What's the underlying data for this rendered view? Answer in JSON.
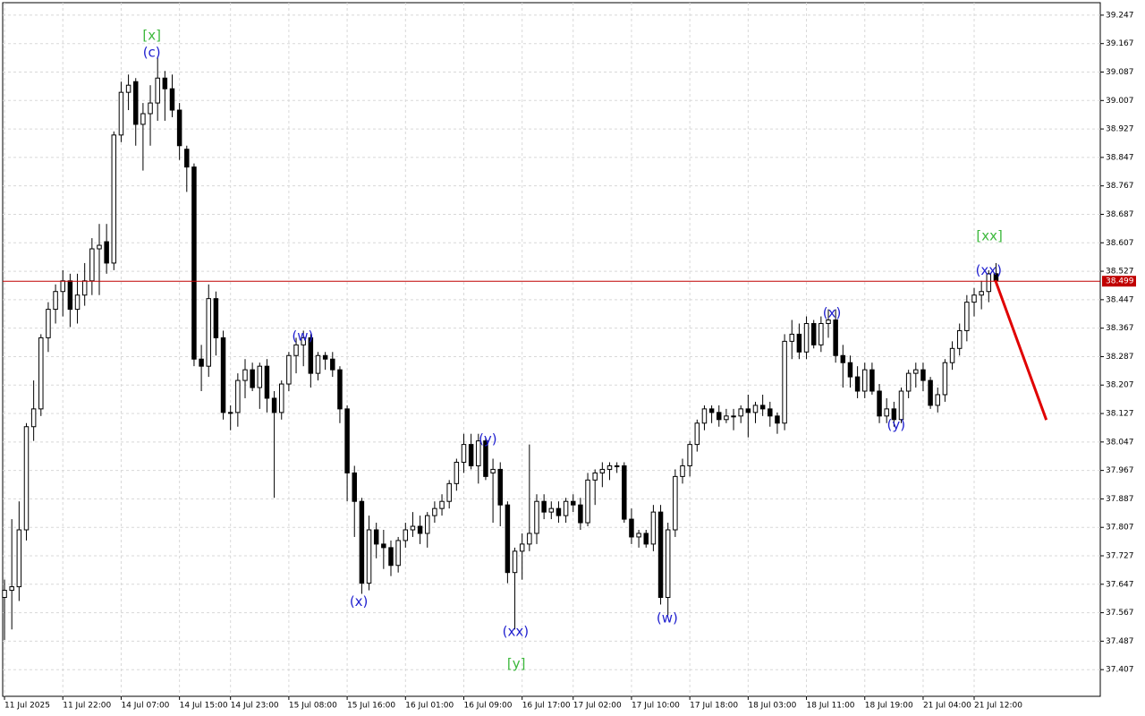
{
  "chart_data": {
    "type": "candlestick",
    "bull_color": "#ffffff",
    "bear_color": "#000000",
    "wick_color": "#000000",
    "ohlc": [
      [
        37.61,
        37.66,
        37.49,
        37.63
      ],
      [
        37.63,
        37.83,
        37.52,
        37.64
      ],
      [
        37.64,
        37.88,
        37.6,
        37.8
      ],
      [
        37.8,
        38.1,
        37.77,
        38.09
      ],
      [
        38.09,
        38.22,
        38.05,
        38.14
      ],
      [
        38.14,
        38.35,
        38.12,
        38.34
      ],
      [
        38.34,
        38.44,
        38.3,
        38.42
      ],
      [
        38.42,
        38.49,
        38.38,
        38.47
      ],
      [
        38.47,
        38.53,
        38.4,
        38.5
      ],
      [
        38.5,
        38.52,
        38.37,
        38.42
      ],
      [
        38.42,
        38.52,
        38.38,
        38.46
      ],
      [
        38.46,
        38.55,
        38.43,
        38.5
      ],
      [
        38.5,
        38.62,
        38.46,
        38.59
      ],
      [
        38.59,
        38.66,
        38.46,
        38.6
      ],
      [
        38.61,
        38.66,
        38.52,
        38.55
      ],
      [
        38.55,
        38.92,
        38.53,
        38.91
      ],
      [
        38.91,
        39.06,
        38.89,
        39.03
      ],
      [
        39.03,
        39.08,
        38.98,
        39.05
      ],
      [
        39.06,
        39.07,
        38.88,
        38.94
      ],
      [
        38.94,
        39.0,
        38.81,
        38.97
      ],
      [
        38.97,
        39.05,
        38.88,
        39.0
      ],
      [
        39.0,
        39.13,
        38.95,
        39.07
      ],
      [
        39.07,
        39.09,
        38.95,
        39.04
      ],
      [
        39.04,
        39.08,
        38.96,
        38.98
      ],
      [
        38.98,
        39.0,
        38.84,
        38.88
      ],
      [
        38.87,
        38.88,
        38.75,
        38.82
      ],
      [
        38.82,
        38.83,
        38.26,
        38.28
      ],
      [
        38.28,
        38.32,
        38.19,
        38.26
      ],
      [
        38.26,
        38.49,
        38.23,
        38.45
      ],
      [
        38.45,
        38.47,
        38.29,
        38.34
      ],
      [
        38.34,
        38.36,
        38.11,
        38.13
      ],
      [
        38.13,
        38.15,
        38.08,
        38.13
      ],
      [
        38.13,
        38.24,
        38.09,
        38.22
      ],
      [
        38.22,
        38.28,
        38.17,
        38.25
      ],
      [
        38.25,
        38.27,
        38.19,
        38.2
      ],
      [
        38.2,
        38.27,
        38.14,
        38.26
      ],
      [
        38.26,
        38.28,
        38.13,
        38.17
      ],
      [
        38.17,
        38.19,
        37.89,
        38.13
      ],
      [
        38.13,
        38.22,
        38.11,
        38.21
      ],
      [
        38.21,
        38.3,
        38.19,
        38.29
      ],
      [
        38.29,
        38.34,
        38.24,
        38.32
      ],
      [
        38.32,
        38.36,
        38.26,
        38.34
      ],
      [
        38.34,
        38.35,
        38.2,
        38.24
      ],
      [
        38.24,
        38.3,
        38.22,
        38.29
      ],
      [
        38.29,
        38.3,
        38.25,
        38.28
      ],
      [
        38.28,
        38.3,
        38.23,
        38.25
      ],
      [
        38.25,
        38.26,
        38.1,
        38.14
      ],
      [
        38.14,
        38.15,
        37.88,
        37.96
      ],
      [
        37.96,
        37.98,
        37.78,
        37.88
      ],
      [
        37.88,
        37.89,
        37.62,
        37.65
      ],
      [
        37.65,
        37.84,
        37.63,
        37.8
      ],
      [
        37.8,
        37.82,
        37.72,
        37.76
      ],
      [
        37.76,
        37.8,
        37.69,
        37.75
      ],
      [
        37.75,
        37.77,
        37.67,
        37.7
      ],
      [
        37.7,
        37.78,
        37.68,
        37.77
      ],
      [
        37.77,
        37.82,
        37.75,
        37.8
      ],
      [
        37.8,
        37.85,
        37.78,
        37.81
      ],
      [
        37.81,
        37.84,
        37.76,
        37.79
      ],
      [
        37.79,
        37.85,
        37.75,
        37.84
      ],
      [
        37.84,
        37.88,
        37.82,
        37.86
      ],
      [
        37.86,
        37.9,
        37.84,
        37.88
      ],
      [
        37.88,
        37.94,
        37.86,
        37.93
      ],
      [
        37.93,
        38.0,
        37.91,
        37.99
      ],
      [
        37.99,
        38.07,
        37.96,
        38.04
      ],
      [
        38.04,
        38.07,
        37.97,
        37.98
      ],
      [
        37.98,
        38.07,
        37.93,
        38.05
      ],
      [
        38.05,
        38.06,
        37.94,
        37.95
      ],
      [
        37.96,
        38.0,
        37.82,
        37.97
      ],
      [
        37.97,
        37.99,
        37.81,
        37.87
      ],
      [
        37.87,
        37.88,
        37.65,
        37.68
      ],
      [
        37.68,
        37.75,
        37.52,
        37.74
      ],
      [
        37.74,
        37.79,
        37.66,
        37.76
      ],
      [
        37.76,
        38.04,
        37.74,
        37.79
      ],
      [
        37.79,
        37.9,
        37.76,
        37.88
      ],
      [
        37.88,
        37.9,
        37.83,
        37.85
      ],
      [
        37.85,
        37.88,
        37.83,
        37.86
      ],
      [
        37.86,
        37.88,
        37.82,
        37.84
      ],
      [
        37.84,
        37.89,
        37.82,
        37.88
      ],
      [
        37.88,
        37.9,
        37.85,
        37.87
      ],
      [
        37.87,
        37.89,
        37.8,
        37.82
      ],
      [
        37.82,
        37.96,
        37.81,
        37.94
      ],
      [
        37.94,
        37.97,
        37.87,
        37.96
      ],
      [
        37.96,
        37.99,
        37.92,
        37.97
      ],
      [
        37.97,
        37.99,
        37.94,
        37.98
      ],
      [
        37.98,
        37.99,
        37.96,
        37.98
      ],
      [
        37.98,
        37.99,
        37.82,
        37.83
      ],
      [
        37.83,
        37.86,
        37.76,
        37.78
      ],
      [
        37.78,
        37.8,
        37.75,
        37.79
      ],
      [
        37.79,
        37.8,
        37.75,
        37.76
      ],
      [
        37.76,
        37.87,
        37.74,
        37.85
      ],
      [
        37.85,
        37.87,
        37.59,
        37.61
      ],
      [
        37.61,
        37.82,
        37.56,
        37.8
      ],
      [
        37.8,
        37.97,
        37.78,
        37.95
      ],
      [
        37.95,
        38.0,
        37.93,
        37.98
      ],
      [
        37.98,
        38.05,
        37.95,
        38.04
      ],
      [
        38.04,
        38.11,
        38.02,
        38.1
      ],
      [
        38.1,
        38.15,
        38.08,
        38.14
      ],
      [
        38.14,
        38.15,
        38.1,
        38.13
      ],
      [
        38.13,
        38.15,
        38.09,
        38.11
      ],
      [
        38.11,
        38.14,
        38.1,
        38.12
      ],
      [
        38.12,
        38.14,
        38.08,
        38.12
      ],
      [
        38.12,
        38.15,
        38.1,
        38.14
      ],
      [
        38.14,
        38.18,
        38.06,
        38.13
      ],
      [
        38.13,
        38.16,
        38.1,
        38.15
      ],
      [
        38.15,
        38.18,
        38.12,
        38.14
      ],
      [
        38.14,
        38.16,
        38.09,
        38.12
      ],
      [
        38.12,
        38.13,
        38.07,
        38.1
      ],
      [
        38.1,
        38.35,
        38.08,
        38.33
      ],
      [
        38.33,
        38.39,
        38.28,
        38.35
      ],
      [
        38.35,
        38.38,
        38.28,
        38.3
      ],
      [
        38.3,
        38.4,
        38.28,
        38.38
      ],
      [
        38.38,
        38.39,
        38.31,
        38.32
      ],
      [
        38.32,
        38.4,
        38.3,
        38.38
      ],
      [
        38.38,
        38.42,
        38.34,
        38.39
      ],
      [
        38.39,
        38.42,
        38.27,
        38.29
      ],
      [
        38.29,
        38.32,
        38.2,
        38.27
      ],
      [
        38.27,
        38.29,
        38.2,
        38.23
      ],
      [
        38.23,
        38.26,
        38.17,
        38.19
      ],
      [
        38.19,
        38.27,
        38.17,
        38.25
      ],
      [
        38.25,
        38.27,
        38.18,
        38.19
      ],
      [
        38.19,
        38.21,
        38.1,
        38.12
      ],
      [
        38.12,
        38.17,
        38.1,
        38.14
      ],
      [
        38.14,
        38.16,
        38.09,
        38.11
      ],
      [
        38.11,
        38.2,
        38.1,
        38.19
      ],
      [
        38.19,
        38.25,
        38.17,
        38.24
      ],
      [
        38.24,
        38.27,
        38.2,
        38.25
      ],
      [
        38.25,
        38.27,
        38.19,
        38.22
      ],
      [
        38.22,
        38.23,
        38.14,
        38.15
      ],
      [
        38.15,
        38.2,
        38.13,
        38.18
      ],
      [
        38.18,
        38.28,
        38.16,
        38.27
      ],
      [
        38.27,
        38.33,
        38.25,
        38.31
      ],
      [
        38.31,
        38.38,
        38.29,
        38.36
      ],
      [
        38.36,
        38.46,
        38.33,
        38.44
      ],
      [
        38.44,
        38.48,
        38.4,
        38.46
      ],
      [
        38.46,
        38.5,
        38.42,
        38.47
      ],
      [
        38.47,
        38.53,
        38.44,
        38.52
      ],
      [
        38.52,
        38.55,
        38.49,
        38.5
      ]
    ],
    "xlim": [
      -0.25,
      150.3
    ],
    "xticks": [
      {
        "value": 0,
        "label": "11 Jul 2025"
      },
      {
        "value": 8,
        "label": "11 Jul 22:00"
      },
      {
        "value": 16,
        "label": "14 Jul 07:00"
      },
      {
        "value": 24,
        "label": "14 Jul 15:00"
      },
      {
        "value": 31,
        "label": "14 Jul 23:00"
      },
      {
        "value": 39,
        "label": "15 Jul 08:00"
      },
      {
        "value": 47,
        "label": "15 Jul 16:00"
      },
      {
        "value": 55,
        "label": "16 Jul 01:00"
      },
      {
        "value": 63,
        "label": "16 Jul 09:00"
      },
      {
        "value": 71,
        "label": "16 Jul 17:00"
      },
      {
        "value": 78,
        "label": "17 Jul 02:00"
      },
      {
        "value": 86,
        "label": "17 Jul 10:00"
      },
      {
        "value": 94,
        "label": "17 Jul 18:00"
      },
      {
        "value": 102,
        "label": "18 Jul 03:00"
      },
      {
        "value": 110,
        "label": "18 Jul 11:00"
      },
      {
        "value": 118,
        "label": "18 Jul 19:00"
      },
      {
        "value": 126,
        "label": "21 Jul 04:00"
      },
      {
        "value": 133,
        "label": "21 Jul 12:00"
      }
    ],
    "ylim": [
      37.332,
      39.282
    ],
    "yticks": [
      39.247,
      39.167,
      39.087,
      39.007,
      38.927,
      38.847,
      38.767,
      38.687,
      38.607,
      38.527,
      38.447,
      38.367,
      38.287,
      38.207,
      38.127,
      38.047,
      37.967,
      37.887,
      37.807,
      37.727,
      37.647,
      37.567,
      37.487,
      37.407
    ],
    "grid": true,
    "price_line": {
      "value": 38.499,
      "color": "#c00000"
    },
    "annotations": [
      {
        "text": "[x]",
        "x": 20.2,
        "y": 39.189,
        "color": "#3cb83c"
      },
      {
        "text": "(c)",
        "x": 20.2,
        "y": 39.141,
        "color": "#1f1fcf"
      },
      {
        "text": "(w)",
        "x": 40.9,
        "y": 38.343,
        "color": "#1f1fcf"
      },
      {
        "text": "(x)",
        "x": 48.6,
        "y": 37.598,
        "color": "#1f1fcf"
      },
      {
        "text": "(y)",
        "x": 66.3,
        "y": 38.054,
        "color": "#1f1fcf"
      },
      {
        "text": "(xx)",
        "x": 70.1,
        "y": 37.513,
        "color": "#1f1fcf"
      },
      {
        "text": "[y]",
        "x": 70.2,
        "y": 37.422,
        "color": "#3cb83c"
      },
      {
        "text": "(w)",
        "x": 90.9,
        "y": 37.551,
        "color": "#1f1fcf"
      },
      {
        "text": "(x)",
        "x": 113.5,
        "y": 38.409,
        "color": "#1f1fcf"
      },
      {
        "text": "(y)",
        "x": 122.3,
        "y": 38.094,
        "color": "#1f1fcf"
      },
      {
        "text": "(xx)",
        "x": 135,
        "y": 38.529,
        "color": "#1f1fcf"
      },
      {
        "text": "[xx]",
        "x": 135.1,
        "y": 38.625,
        "color": "#3cb83c"
      }
    ],
    "arrow": {
      "x": [
        135.9,
        142.9
      ],
      "y": [
        38.502,
        38.109
      ],
      "color": "#e00000"
    }
  }
}
